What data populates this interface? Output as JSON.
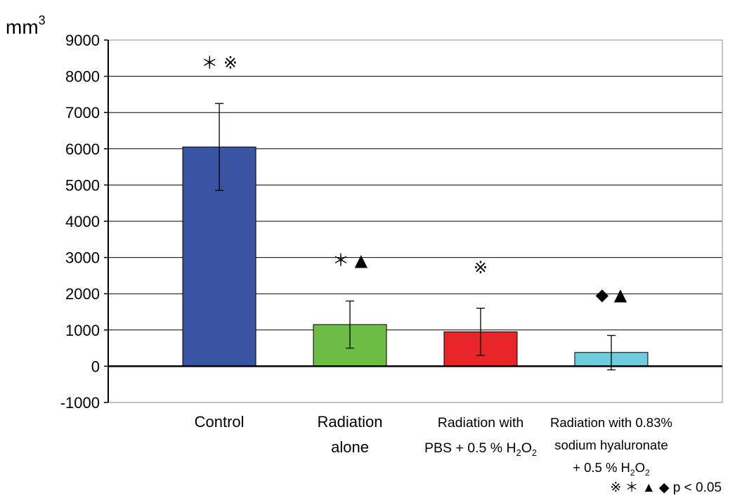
{
  "chart_data": {
    "type": "bar",
    "ylabel": "mm",
    "ylabel_superscript": "3",
    "ylim": [
      -1000,
      9000
    ],
    "yticks": [
      "9000",
      "8000",
      "7000",
      "6000",
      "5000",
      "4000",
      "3000",
      "2000",
      "1000",
      "0",
      "-1000"
    ],
    "grid": true,
    "categories": [
      [
        "Control"
      ],
      [
        "Radiation",
        "alone"
      ],
      [
        [
          {
            "t": "Radiation with"
          }
        ],
        [
          {
            "t": "PBS + 0.5 % H"
          },
          {
            "t": "2",
            "sub": true
          },
          {
            "t": "O"
          },
          {
            "t": "2",
            "sub": true
          }
        ]
      ],
      [
        [
          {
            "t": "Radiation with 0.83%"
          }
        ],
        [
          {
            "t": "sodium hyaluronate"
          }
        ],
        [
          {
            "t": "+ 0.5 %  H"
          },
          {
            "t": "2",
            "sub": true
          },
          {
            "t": "O"
          },
          {
            "t": "2",
            "sub": true
          }
        ]
      ]
    ],
    "values": [
      6050,
      1150,
      950,
      380
    ],
    "error_low": [
      4850,
      500,
      300,
      -100
    ],
    "error_high": [
      7250,
      1800,
      1600,
      850
    ],
    "colors": [
      "#3a54a4",
      "#6dbd45",
      "#e8262a",
      "#6dcbdb"
    ],
    "significance_marks": [
      "＊ ※",
      "＊ ▲",
      "※",
      "◆ ▲"
    ],
    "legend_text": "※  ＊  ▲  ◆   p < 0.05"
  }
}
